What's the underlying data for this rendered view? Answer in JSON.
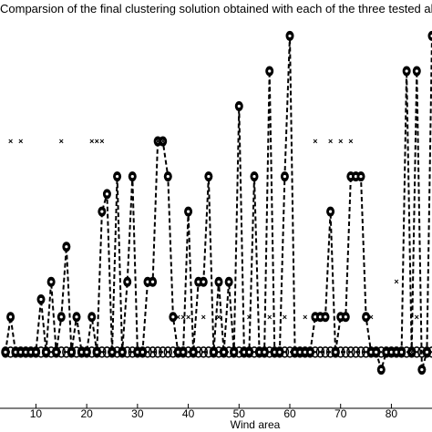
{
  "chart_data": {
    "type": "line",
    "title": "Comparsion of the final clustering solution obtained with each of the three tested algorithms",
    "xlabel": "Wind area",
    "ylabel": "",
    "xlim": [
      4,
      88
    ],
    "ylim": [
      0.4,
      11.4
    ],
    "x_ticks": [
      10,
      20,
      30,
      40,
      50,
      60,
      70,
      80
    ],
    "grid": false,
    "legend": "none",
    "series": [
      {
        "marker": "circle-open",
        "line": "dashed",
        "x": [
          4,
          5,
          6,
          7,
          8,
          9,
          10,
          11,
          12,
          13,
          14,
          15,
          16,
          17,
          18,
          19,
          20,
          21,
          22,
          23,
          24,
          25,
          26,
          27,
          28,
          29,
          30,
          31,
          32,
          33,
          34,
          35,
          36,
          37,
          38,
          39,
          40,
          41,
          42,
          43,
          44,
          45,
          46,
          47,
          48,
          49,
          50,
          51,
          52,
          53,
          54,
          55,
          56,
          57,
          58,
          59,
          60,
          61,
          62,
          63,
          64,
          65,
          66,
          67,
          68,
          69,
          70,
          71,
          72,
          73,
          74,
          75,
          76,
          77,
          78,
          79,
          80,
          81,
          82,
          83,
          84,
          85,
          86,
          87,
          88
        ],
        "y": [
          2,
          2,
          2,
          2,
          2,
          2,
          2,
          2,
          2,
          2,
          2,
          2,
          2,
          2,
          2,
          2,
          2,
          2,
          2,
          2,
          2,
          2,
          2,
          2,
          2,
          2,
          2,
          2,
          2,
          2,
          2,
          2,
          2,
          2,
          2,
          2,
          2,
          2,
          2,
          2,
          2,
          2,
          2,
          2,
          2,
          2,
          2,
          2,
          2,
          2,
          2,
          2,
          2,
          2,
          2,
          2,
          2,
          2,
          2,
          2,
          2,
          2,
          2,
          2,
          2,
          2,
          2,
          2,
          2,
          2,
          2,
          2,
          2,
          2,
          2,
          2,
          2,
          2,
          2,
          2,
          2,
          2,
          2,
          2,
          2
        ]
      },
      {
        "marker": "filled-dot",
        "line": "dashed",
        "x": [
          4,
          5,
          6,
          7,
          8,
          9,
          10,
          11,
          12,
          13,
          14,
          15,
          16,
          17,
          18,
          19,
          20,
          21,
          22,
          23,
          24,
          25,
          26,
          27,
          28,
          29,
          30,
          31,
          32,
          33,
          34,
          35,
          36,
          37,
          38,
          39,
          40,
          41,
          42,
          43,
          44,
          45,
          46,
          47,
          48,
          49,
          50,
          51,
          52,
          53,
          54,
          55,
          56,
          57,
          58,
          59,
          60,
          61,
          62,
          63,
          64,
          65,
          66,
          67,
          68,
          69,
          70,
          71,
          72,
          73,
          74,
          75,
          76,
          77,
          78,
          79,
          80,
          81,
          82,
          83,
          84,
          85,
          86,
          87,
          88
        ],
        "y": [
          2,
          3,
          2,
          2,
          2,
          2,
          2,
          3.5,
          2,
          4,
          2,
          3,
          5,
          2,
          3,
          2,
          2,
          3,
          2,
          6,
          6.5,
          2,
          7,
          2,
          4,
          7,
          2,
          2,
          4,
          4,
          8,
          8,
          7,
          3,
          2,
          2,
          6,
          2,
          4,
          4,
          7,
          2,
          4,
          2,
          4,
          2,
          9,
          2,
          2,
          7,
          2,
          2,
          10,
          2,
          2,
          7,
          11,
          2,
          2,
          2,
          2,
          3,
          3,
          3,
          6,
          2,
          3,
          3,
          7,
          7,
          7,
          3,
          2,
          2,
          1.5,
          2,
          2,
          2,
          2,
          10,
          2,
          10,
          1.5,
          2,
          11
        ]
      },
      {
        "marker": "x",
        "line": "none",
        "x": [
          5,
          7,
          15,
          21,
          22,
          23,
          34,
          35,
          38,
          39,
          40,
          43,
          46,
          52,
          56,
          59,
          63,
          65,
          68,
          70,
          72,
          76,
          81,
          84,
          85
        ],
        "y": [
          8,
          8,
          8,
          8,
          8,
          8,
          8,
          8,
          3,
          3,
          3,
          3,
          3,
          3,
          3,
          3,
          3,
          8,
          8,
          8,
          8,
          3,
          4,
          2,
          3
        ]
      }
    ]
  }
}
